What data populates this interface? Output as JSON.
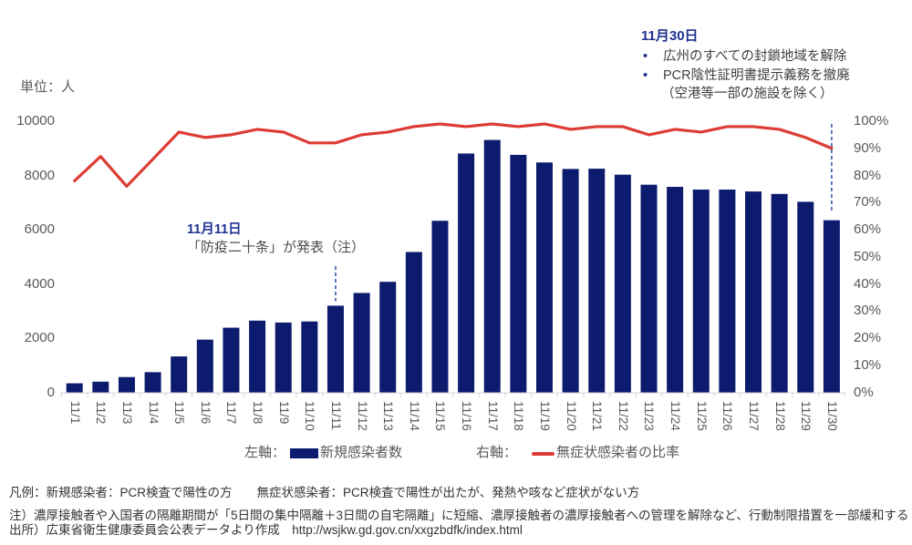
{
  "unit_label": "単位：人",
  "colors": {
    "bar": "#0d1b6e",
    "line": "#dd3c35",
    "dashed_marker": "#4a69b8",
    "annotation_heading": "#1e3191",
    "axis_text": "#595959",
    "baseline": "#d9d9d9"
  },
  "annotations": {
    "nov30": {
      "heading": "11月30日",
      "bullet_glyph": "•",
      "bullet1": "広州のすべての封鎖地域を解除",
      "bullet2": "PCR陰性証明書提示義務を撤廃",
      "bullet2_cont": "（空港等一部の施設を除く）",
      "target_category": "11/30"
    },
    "nov11": {
      "heading": "11月11日",
      "body": "「防疫二十条」が発表（注）",
      "target_category": "11/11"
    }
  },
  "legend": {
    "left_axis_title": "左軸：",
    "left_series_label": "新規感染者数",
    "right_axis_title": "右軸：",
    "right_series_label": "無症状感染者の比率"
  },
  "footnotes": {
    "legend_note": "凡例：新規感染者：PCR検査で陽性の方　　無症状感染者：PCR検査で陽性が出たが、発熱や咳など症状がない方",
    "note": "注）濃厚接触者や入国者の隔離期間が「5日間の集中隔離＋3日間の自宅隔離」に短縮、濃厚接触者の濃厚接触者への管理を解除など、行動制限措置を一部緩和する",
    "source": "出所）広東省衛生健康委員会公表データより作成　http://wsjkw.gd.gov.cn/xxgzbdfk/index.html"
  },
  "chart_data": {
    "type": "bar",
    "subtype": "combo-bar-line",
    "categories": [
      "11/1",
      "11/2",
      "11/3",
      "11/4",
      "11/5",
      "11/6",
      "11/7",
      "11/8",
      "11/9",
      "11/10",
      "11/11",
      "11/12",
      "11/13",
      "11/14",
      "11/15",
      "11/16",
      "11/17",
      "11/18",
      "11/19",
      "11/20",
      "11/21",
      "11/22",
      "11/23",
      "11/24",
      "11/25",
      "11/26",
      "11/27",
      "11/28",
      "11/29",
      "11/30"
    ],
    "series": [
      {
        "name": "新規感染者数",
        "type": "bar",
        "axis": "left",
        "values": [
          340,
          400,
          570,
          750,
          1330,
          1950,
          2390,
          2650,
          2580,
          2620,
          3200,
          3670,
          4080,
          5180,
          6330,
          8810,
          9310,
          8760,
          8480,
          8240,
          8250,
          8030,
          7660,
          7580,
          7480,
          7480,
          7410,
          7320,
          7030,
          6350
        ]
      },
      {
        "name": "無症状感染者の比率",
        "type": "line",
        "axis": "right",
        "unit": "%",
        "values": [
          78,
          87,
          76,
          86,
          96,
          94,
          95,
          97,
          96,
          92,
          92,
          95,
          96,
          98,
          99,
          98,
          99,
          98,
          99,
          97,
          98,
          98,
          95,
          97,
          96,
          98,
          98,
          97,
          94,
          90
        ]
      }
    ],
    "left_axis": {
      "min": 0,
      "max": 10000,
      "tick_step": 2000,
      "tick_labels": [
        "0",
        "2000",
        "4000",
        "6000",
        "8000",
        "10000"
      ]
    },
    "right_axis": {
      "min": 0,
      "max": 100,
      "tick_step": 10,
      "tick_labels": [
        "0%",
        "10%",
        "20%",
        "30%",
        "40%",
        "50%",
        "60%",
        "70%",
        "80%",
        "90%",
        "100%"
      ]
    },
    "grid": false,
    "legend_position": "bottom"
  }
}
